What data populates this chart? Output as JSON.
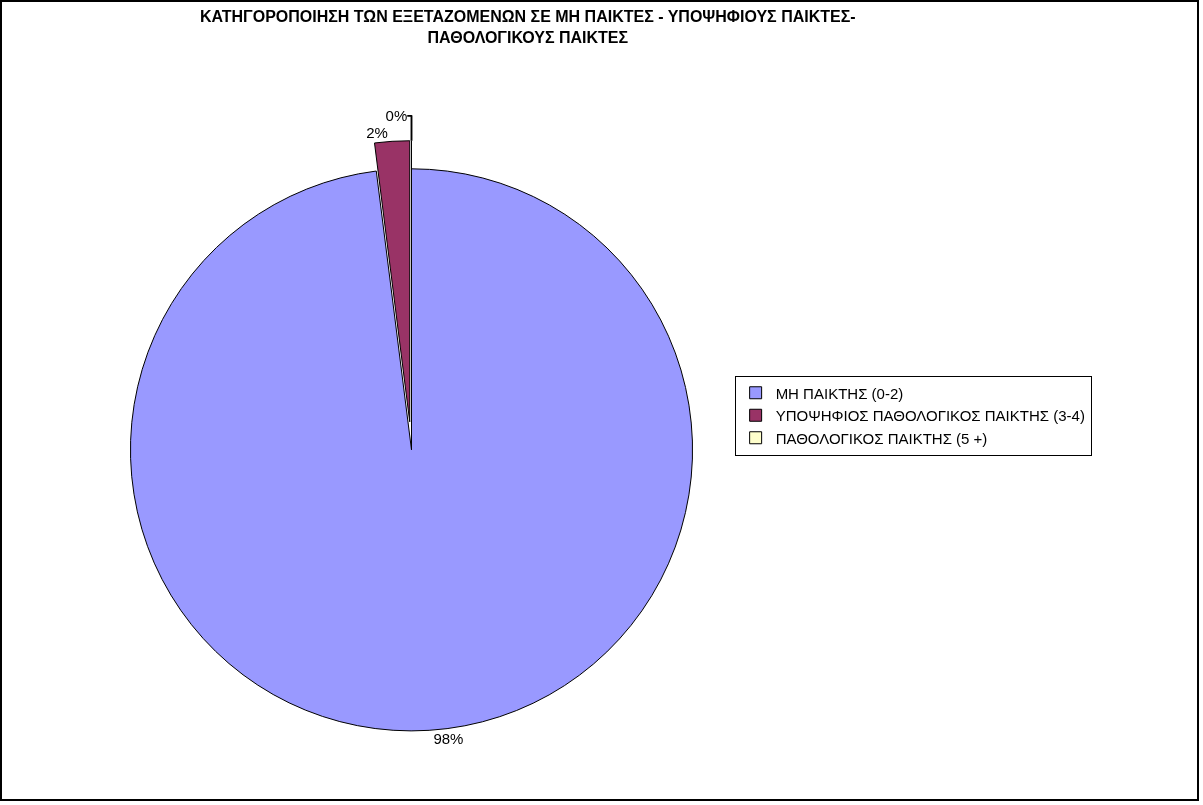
{
  "chart_data": {
    "type": "pie",
    "title": "ΚΑΤΗΓΟΡΟΠΟΙΗΣΗ ΤΩΝ ΕΞΕΤΑΖΟΜΕΝΩΝ ΣΕ ΜΗ ΠΑΙΚΤΕΣ - ΥΠΟΨΗΦΙΟΥΣ ΠΑΙΚΤΕΣ- ΠΑΘΟΛΟΓΙΚΟΥΣ ΠΑΙΚΤΕΣ",
    "categories": [
      "ΜΗ ΠΑΙΚΤΗΣ (0-2)",
      "ΥΠΟΨΗΦΙΟΣ ΠΑΘΟΛΟΓΙΚΟΣ ΠΑΙΚΤΗΣ (3-4)",
      "ΠΑΘΟΛΟΓΙΚΟΣ ΠΑΙΚΤΗΣ (5 +)"
    ],
    "values": [
      98,
      2,
      0
    ],
    "value_labels": [
      "98%",
      "2%",
      "0%"
    ],
    "colors": [
      "#9999ff",
      "#993366",
      "#ffffcc"
    ],
    "legend": "right"
  }
}
